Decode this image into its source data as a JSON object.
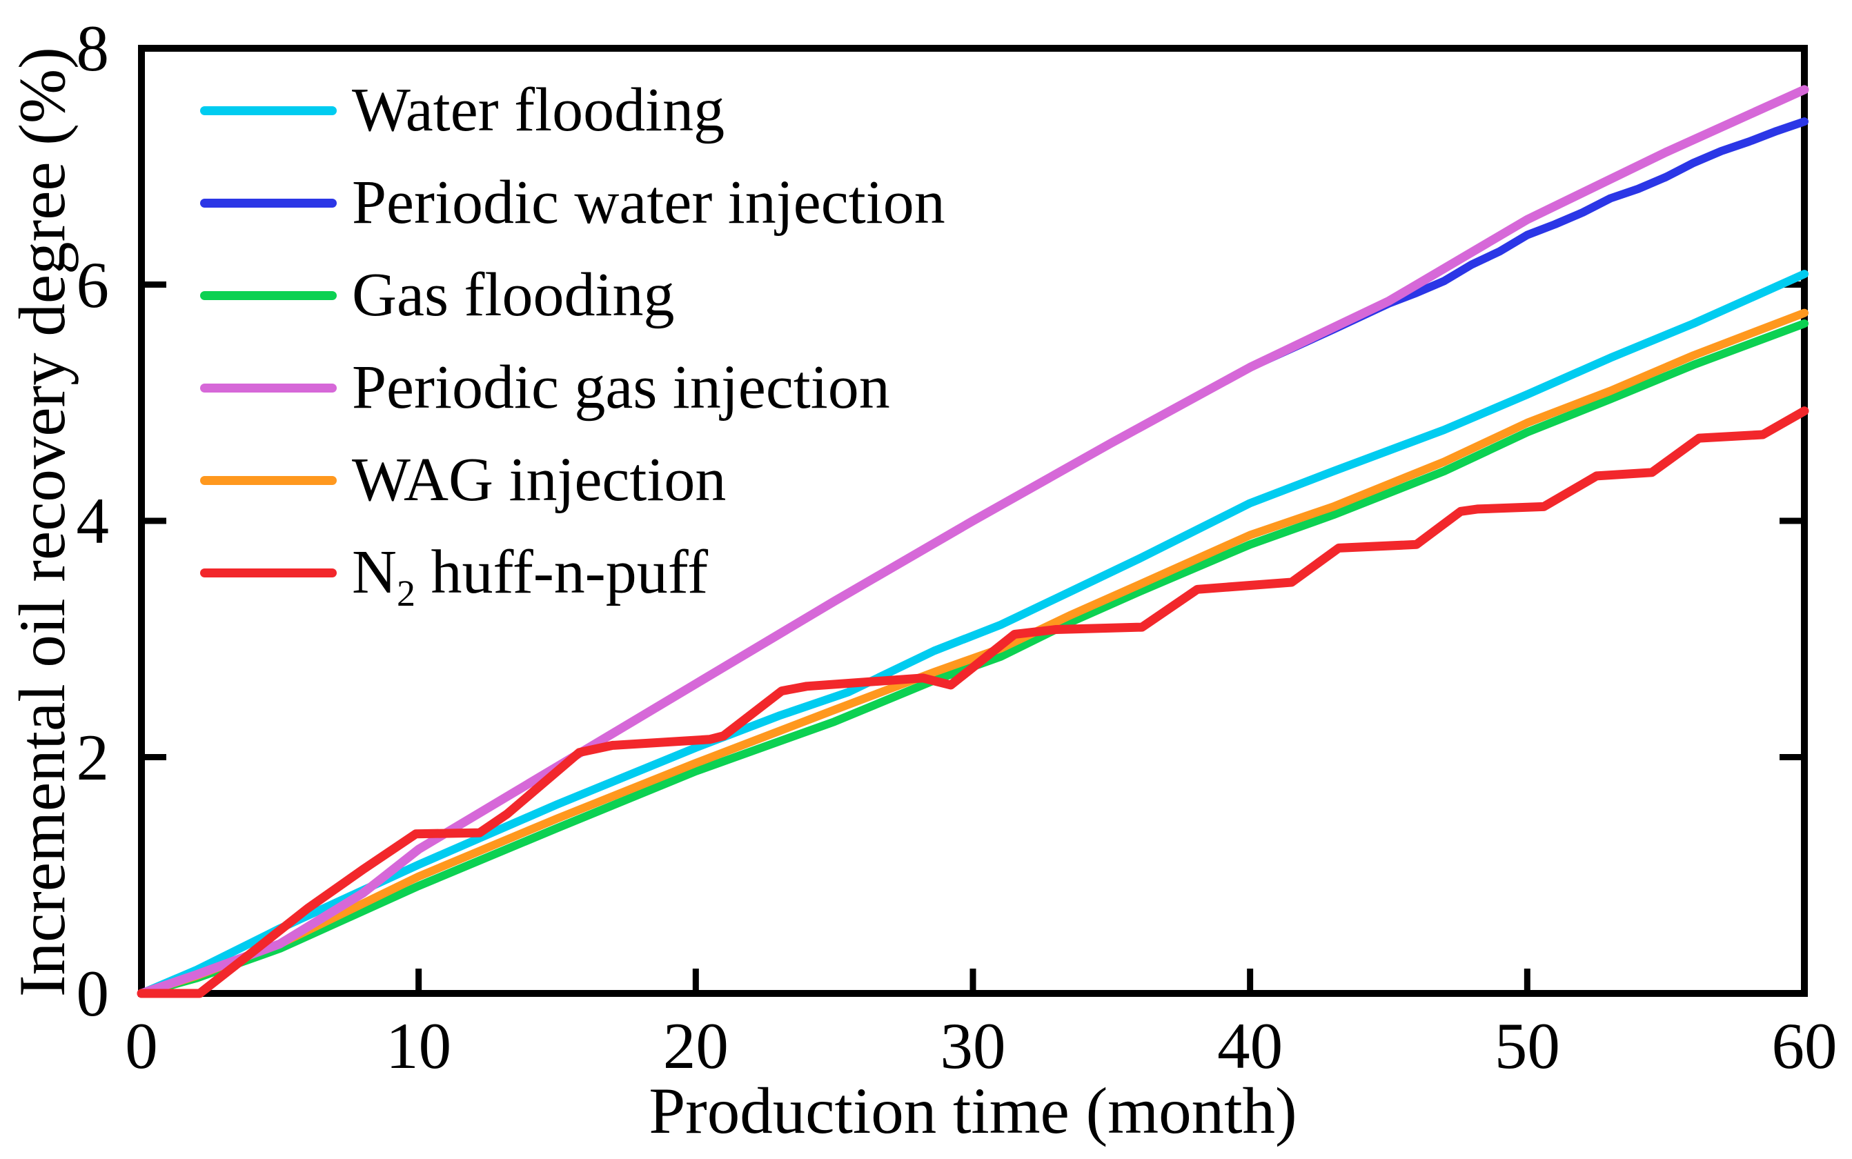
{
  "chart_data": {
    "type": "line",
    "title": "",
    "xlabel": "Production time (month)",
    "ylabel": "Incremental oil recovery degree (%)",
    "xlim": [
      0,
      60
    ],
    "ylim": [
      0,
      8
    ],
    "xticks": [
      0,
      10,
      20,
      30,
      40,
      50,
      60
    ],
    "yticks": [
      0,
      2,
      4,
      6,
      8
    ],
    "grid": false,
    "legend_position": "upper-left-inside",
    "frame_color": "#000000",
    "series": [
      {
        "id": "water-flooding",
        "label": "Water flooding",
        "color": "#00CCF0",
        "line_width": 12,
        "draw_order": 3,
        "points": [
          [
            0,
            0
          ],
          [
            2,
            0.2
          ],
          [
            5,
            0.55
          ],
          [
            10,
            1.09
          ],
          [
            15,
            1.6
          ],
          [
            20,
            2.08
          ],
          [
            23,
            2.35
          ],
          [
            25.5,
            2.55
          ],
          [
            28.6,
            2.9
          ],
          [
            31,
            3.12
          ],
          [
            33.5,
            3.4
          ],
          [
            36,
            3.68
          ],
          [
            40,
            4.15
          ],
          [
            43,
            4.42
          ],
          [
            47,
            4.77
          ],
          [
            50,
            5.07
          ],
          [
            53,
            5.38
          ],
          [
            56,
            5.67
          ],
          [
            60,
            6.09
          ]
        ]
      },
      {
        "id": "periodic-water-injection",
        "label": "Periodic water injection",
        "color": "#2B36E6",
        "line_width": 12,
        "draw_order": 4,
        "points": [
          [
            0,
            0
          ],
          [
            2,
            0.16
          ],
          [
            5,
            0.42
          ],
          [
            8,
            0.85
          ],
          [
            10,
            1.22
          ],
          [
            15,
            1.92
          ],
          [
            20,
            2.62
          ],
          [
            25,
            3.32
          ],
          [
            30,
            4.0
          ],
          [
            35,
            4.66
          ],
          [
            40,
            5.3
          ],
          [
            43,
            5.62
          ],
          [
            45,
            5.84
          ],
          [
            46,
            5.93
          ],
          [
            47,
            6.03
          ],
          [
            48,
            6.17
          ],
          [
            49,
            6.28
          ],
          [
            50,
            6.42
          ],
          [
            51,
            6.51
          ],
          [
            52,
            6.61
          ],
          [
            53,
            6.73
          ],
          [
            54,
            6.81
          ],
          [
            55,
            6.91
          ],
          [
            56,
            7.03
          ],
          [
            57,
            7.13
          ],
          [
            58,
            7.21
          ],
          [
            59,
            7.3
          ],
          [
            60,
            7.38
          ]
        ]
      },
      {
        "id": "gas-flooding",
        "label": "Gas flooding",
        "color": "#0CD152",
        "line_width": 12,
        "draw_order": 1,
        "points": [
          [
            0,
            0
          ],
          [
            2,
            0.13
          ],
          [
            5,
            0.38
          ],
          [
            10,
            0.91
          ],
          [
            15,
            1.4
          ],
          [
            20,
            1.88
          ],
          [
            25,
            2.3
          ],
          [
            28.6,
            2.65
          ],
          [
            31,
            2.85
          ],
          [
            33.5,
            3.14
          ],
          [
            36,
            3.4
          ],
          [
            40,
            3.8
          ],
          [
            43,
            4.05
          ],
          [
            47,
            4.42
          ],
          [
            50,
            4.75
          ],
          [
            53,
            5.03
          ],
          [
            56,
            5.32
          ],
          [
            60,
            5.67
          ]
        ]
      },
      {
        "id": "periodic-gas-injection",
        "label": "Periodic gas injection",
        "color": "#D668D8",
        "line_width": 13,
        "draw_order": 5,
        "points": [
          [
            0,
            0
          ],
          [
            2,
            0.16
          ],
          [
            5,
            0.42
          ],
          [
            8,
            0.85
          ],
          [
            10,
            1.22
          ],
          [
            15,
            1.92
          ],
          [
            20,
            2.62
          ],
          [
            25,
            3.32
          ],
          [
            30,
            4.0
          ],
          [
            35,
            4.66
          ],
          [
            40,
            5.3
          ],
          [
            45,
            5.86
          ],
          [
            50,
            6.55
          ],
          [
            55,
            7.12
          ],
          [
            60,
            7.65
          ]
        ]
      },
      {
        "id": "wag-injection",
        "label": "WAG injection",
        "color": "#FF981E",
        "line_width": 12,
        "draw_order": 2,
        "points": [
          [
            0,
            0
          ],
          [
            2,
            0.15
          ],
          [
            5,
            0.42
          ],
          [
            10,
            0.99
          ],
          [
            15,
            1.48
          ],
          [
            20,
            1.95
          ],
          [
            25,
            2.4
          ],
          [
            28.6,
            2.72
          ],
          [
            31,
            2.92
          ],
          [
            33.5,
            3.2
          ],
          [
            36,
            3.46
          ],
          [
            40,
            3.88
          ],
          [
            43,
            4.12
          ],
          [
            47,
            4.5
          ],
          [
            50,
            4.83
          ],
          [
            53,
            5.1
          ],
          [
            56,
            5.4
          ],
          [
            60,
            5.76
          ]
        ]
      },
      {
        "id": "n2-huff-n-puff",
        "label": "N2 huff-n-puff",
        "label_parts": {
          "base": "N",
          "sub": "2",
          "rest": " huff-n-puff"
        },
        "color": "#F2272B",
        "line_width": 13,
        "draw_order": 6,
        "points": [
          [
            0,
            0
          ],
          [
            2.1,
            0
          ],
          [
            4,
            0.35
          ],
          [
            6,
            0.72
          ],
          [
            8,
            1.05
          ],
          [
            9.9,
            1.35
          ],
          [
            12.2,
            1.36
          ],
          [
            13.2,
            1.52
          ],
          [
            15.8,
            2.04
          ],
          [
            17,
            2.1
          ],
          [
            20.5,
            2.15
          ],
          [
            21,
            2.18
          ],
          [
            23.1,
            2.56
          ],
          [
            24,
            2.6
          ],
          [
            28.2,
            2.67
          ],
          [
            29.2,
            2.61
          ],
          [
            31.5,
            3.04
          ],
          [
            33,
            3.08
          ],
          [
            36.1,
            3.1
          ],
          [
            38.1,
            3.42
          ],
          [
            41.5,
            3.48
          ],
          [
            43.2,
            3.77
          ],
          [
            46,
            3.8
          ],
          [
            47.6,
            4.08
          ],
          [
            48.2,
            4.1
          ],
          [
            50.6,
            4.12
          ],
          [
            52.5,
            4.38
          ],
          [
            54.5,
            4.41
          ],
          [
            56.2,
            4.7
          ],
          [
            58.5,
            4.73
          ],
          [
            60,
            4.93
          ]
        ]
      }
    ]
  }
}
